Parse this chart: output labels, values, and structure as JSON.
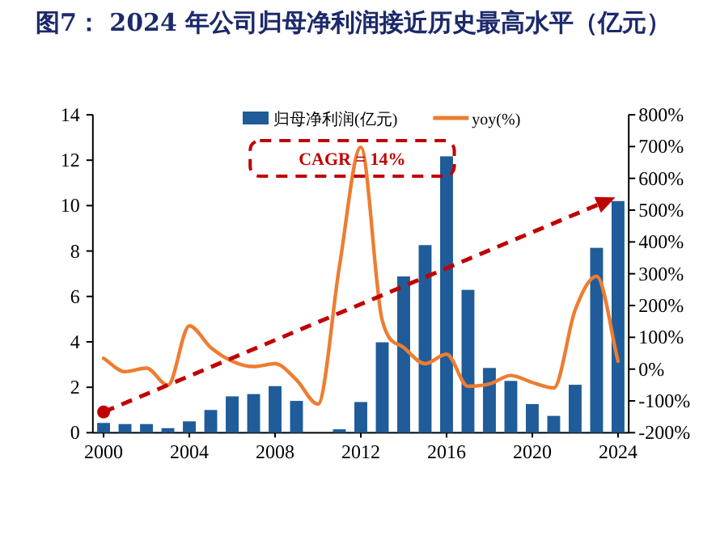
{
  "chart_data": {
    "type": "bar",
    "title": "图7：  2024 年公司归母净利润接近历史最高水平（亿元）",
    "categories": [
      "2000",
      null,
      null,
      null,
      "2004",
      null,
      null,
      null,
      "2008",
      null,
      null,
      null,
      "2012",
      null,
      null,
      null,
      "2016",
      null,
      null,
      null,
      "2020",
      null,
      null,
      null,
      "2024"
    ],
    "series": [
      {
        "name": "归母净利润(亿元)",
        "color": "#1f5c99",
        "values": [
          0.43,
          0.38,
          0.38,
          0.2,
          0.5,
          1.0,
          1.6,
          1.7,
          2.05,
          1.4,
          null,
          0.15,
          1.35,
          3.98,
          6.88,
          8.26,
          12.17,
          6.29,
          2.85,
          2.28,
          1.26,
          0.74,
          2.11,
          8.14,
          10.2
        ]
      },
      {
        "name": "yoy(%)",
        "type": "line",
        "axis": "y2",
        "color": "#ed7d31",
        "values": [
          34,
          -8,
          3,
          -51,
          136,
          68,
          25,
          8,
          17,
          -34,
          -110,
          322,
          698,
          153,
          68,
          17,
          47,
          -54,
          -47,
          -20,
          -42,
          -59,
          186,
          292,
          25
        ]
      }
    ],
    "ylim": [
      0,
      14
    ],
    "yticks": [
      0,
      2,
      4,
      6,
      8,
      10,
      12,
      14
    ],
    "y2lim": [
      -200,
      800
    ],
    "y2ticks": [
      {
        "value": -200,
        "label": "-200%"
      },
      {
        "value": -100,
        "label": "-100%"
      },
      {
        "value": 0,
        "label": "0%"
      },
      {
        "value": 100,
        "label": "100%"
      },
      {
        "value": 200,
        "label": "200%"
      },
      {
        "value": 300,
        "label": "300%"
      },
      {
        "value": 400,
        "label": "400%"
      },
      {
        "value": 500,
        "label": "500%"
      },
      {
        "value": 600,
        "label": "600%"
      },
      {
        "value": 700,
        "label": "700%"
      },
      {
        "value": 800,
        "label": "800%"
      }
    ],
    "annotations": [
      "CAGR = 14%"
    ],
    "legend": "top right",
    "grid": false
  }
}
